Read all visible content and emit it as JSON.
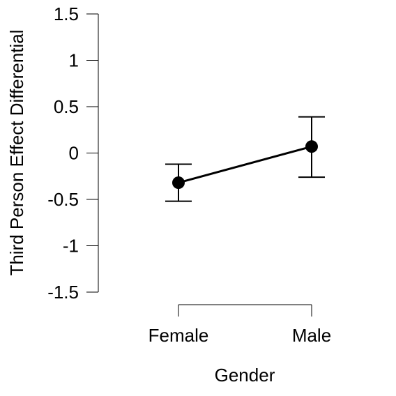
{
  "chart_data": {
    "type": "line",
    "title": "",
    "xlabel": "Gender",
    "ylabel": "Third Person Effect Differential",
    "categories": [
      "Female",
      "Male"
    ],
    "series": [
      {
        "values": [
          -0.32,
          0.07
        ],
        "error_low": [
          -0.52,
          -0.26
        ],
        "error_high": [
          -0.12,
          0.39
        ]
      }
    ],
    "yticks": [
      -1.5,
      -1,
      -0.5,
      0,
      0.5,
      1,
      1.5
    ],
    "ytick_labels": [
      "-1.5",
      "-1",
      "-0.5",
      "0",
      "0.5",
      "1",
      "1.5"
    ],
    "ylim": [
      -1.5,
      1.5
    ],
    "grid": false,
    "legend": "none"
  }
}
